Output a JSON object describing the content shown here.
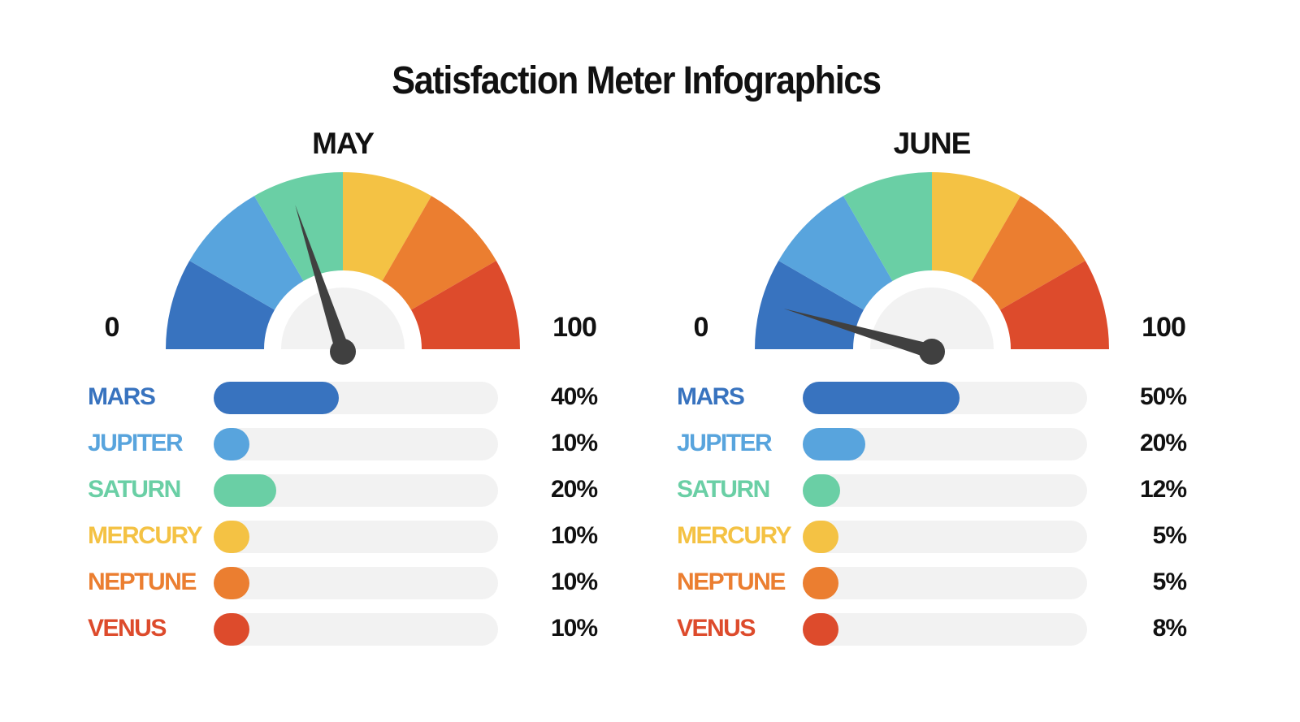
{
  "chart_data": {
    "type": "gauge-and-bar",
    "title": "Satisfaction Meter Infographics",
    "segment_colors": [
      "#3873bf",
      "#58a4dd",
      "#6acfa5",
      "#f4c244",
      "#eb7e30",
      "#dd4b2c"
    ],
    "needle_color": "#404040",
    "panels": [
      {
        "month": "MAY",
        "gauge": {
          "min_label": "0",
          "max_label": "100",
          "range": [
            0,
            100
          ],
          "needle_value": 40
        },
        "categories": [
          "MARS",
          "JUPITER",
          "SATURN",
          "MERCURY",
          "NEPTUNE",
          "VENUS"
        ],
        "values": [
          40,
          10,
          20,
          10,
          10,
          10
        ],
        "value_labels": [
          "40%",
          "10%",
          "20%",
          "10%",
          "10%",
          "10%"
        ]
      },
      {
        "month": "JUNE",
        "gauge": {
          "min_label": "0",
          "max_label": "100",
          "range": [
            0,
            100
          ],
          "needle_value": 9
        },
        "categories": [
          "MARS",
          "JUPITER",
          "SATURN",
          "MERCURY",
          "NEPTUNE",
          "VENUS"
        ],
        "values": [
          50,
          20,
          12,
          5,
          5,
          8
        ],
        "value_labels": [
          "50%",
          "20%",
          "12%",
          "5%",
          "5%",
          "8%"
        ]
      }
    ]
  }
}
